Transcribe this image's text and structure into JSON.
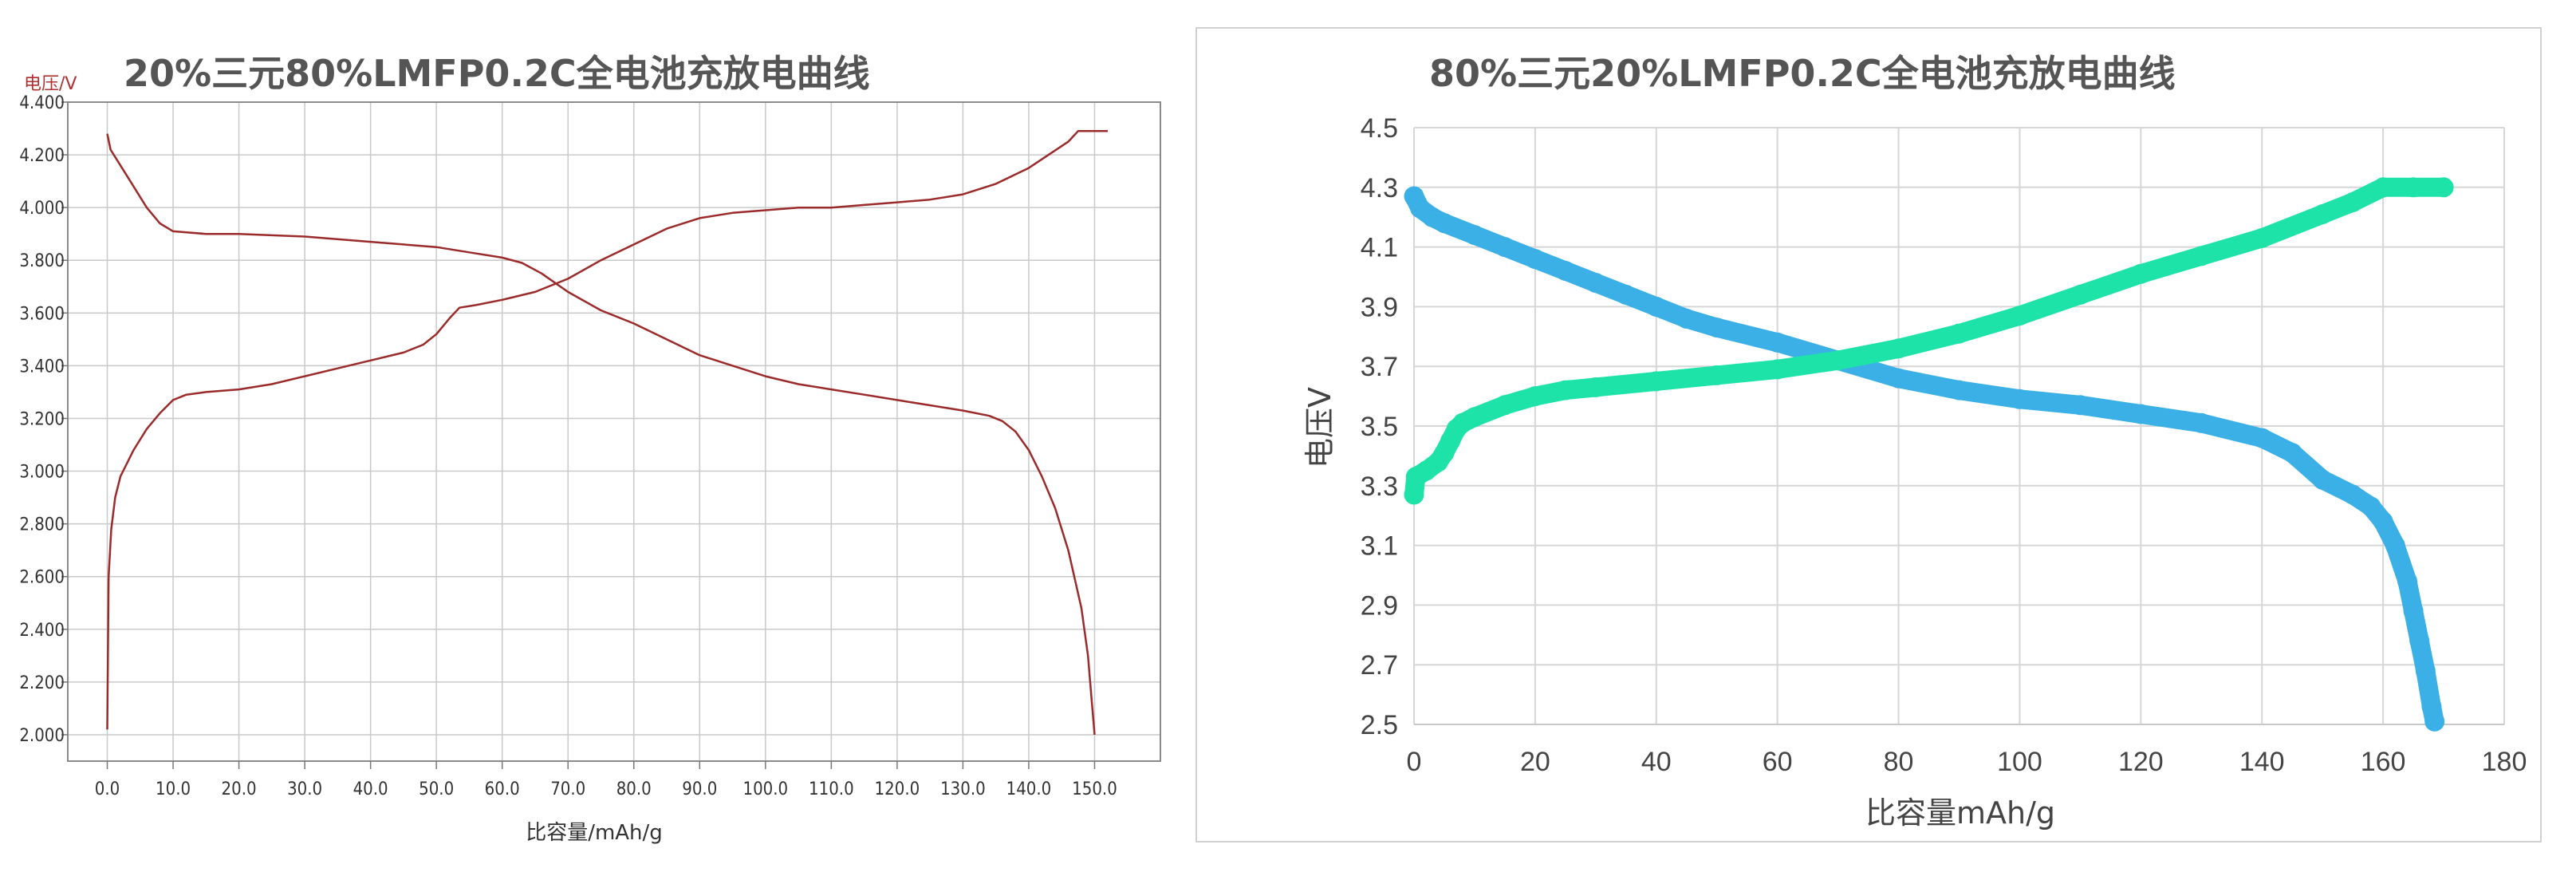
{
  "chart_data": [
    {
      "type": "line",
      "title": "20%三元80%LMFP0.2C全电池充放电曲线",
      "xlabel": "比容量/mAh/g",
      "ylabel": "电压/V",
      "xlim": [
        -6,
        160
      ],
      "ylim": [
        1.9,
        4.4
      ],
      "x_ticks": [
        "0.0",
        "10.0",
        "20.0",
        "30.0",
        "40.0",
        "50.0",
        "60.0",
        "70.0",
        "80.0",
        "90.0",
        "100.0",
        "110.0",
        "120.0",
        "130.0",
        "140.0",
        "150.0"
      ],
      "y_ticks": [
        "2.000",
        "2.200",
        "2.400",
        "2.600",
        "2.800",
        "3.000",
        "3.200",
        "3.400",
        "3.600",
        "3.800",
        "4.000",
        "4.200",
        "4.400"
      ],
      "grid": true,
      "color": "#9b2b2b",
      "series": [
        {
          "role": "charge",
          "points": [
            [
              0,
              2.02
            ],
            [
              0.2,
              2.6
            ],
            [
              0.6,
              2.78
            ],
            [
              1.2,
              2.9
            ],
            [
              2,
              2.98
            ],
            [
              4,
              3.08
            ],
            [
              6,
              3.16
            ],
            [
              8,
              3.22
            ],
            [
              10,
              3.27
            ],
            [
              12,
              3.29
            ],
            [
              15,
              3.3
            ],
            [
              20,
              3.31
            ],
            [
              25,
              3.33
            ],
            [
              30,
              3.36
            ],
            [
              35,
              3.39
            ],
            [
              40,
              3.42
            ],
            [
              45,
              3.45
            ],
            [
              48,
              3.48
            ],
            [
              50,
              3.52
            ],
            [
              52,
              3.58
            ],
            [
              53.5,
              3.62
            ],
            [
              56,
              3.63
            ],
            [
              60,
              3.65
            ],
            [
              65,
              3.68
            ],
            [
              70,
              3.73
            ],
            [
              75,
              3.8
            ],
            [
              80,
              3.86
            ],
            [
              85,
              3.92
            ],
            [
              90,
              3.96
            ],
            [
              95,
              3.98
            ],
            [
              100,
              3.99
            ],
            [
              105,
              4.0
            ],
            [
              110,
              4.0
            ],
            [
              115,
              4.01
            ],
            [
              120,
              4.02
            ],
            [
              125,
              4.03
            ],
            [
              130,
              4.05
            ],
            [
              135,
              4.09
            ],
            [
              140,
              4.15
            ],
            [
              143,
              4.2
            ],
            [
              146,
              4.25
            ],
            [
              147.5,
              4.29
            ],
            [
              150,
              4.29
            ],
            [
              152,
              4.29
            ]
          ]
        },
        {
          "role": "discharge",
          "points": [
            [
              0,
              4.28
            ],
            [
              0.5,
              4.22
            ],
            [
              2,
              4.16
            ],
            [
              4,
              4.08
            ],
            [
              6,
              4.0
            ],
            [
              8,
              3.94
            ],
            [
              10,
              3.91
            ],
            [
              15,
              3.9
            ],
            [
              20,
              3.9
            ],
            [
              30,
              3.89
            ],
            [
              40,
              3.87
            ],
            [
              50,
              3.85
            ],
            [
              55,
              3.83
            ],
            [
              60,
              3.81
            ],
            [
              63,
              3.79
            ],
            [
              66,
              3.75
            ],
            [
              70,
              3.68
            ],
            [
              75,
              3.61
            ],
            [
              80,
              3.56
            ],
            [
              85,
              3.5
            ],
            [
              90,
              3.44
            ],
            [
              95,
              3.4
            ],
            [
              100,
              3.36
            ],
            [
              105,
              3.33
            ],
            [
              110,
              3.31
            ],
            [
              115,
              3.29
            ],
            [
              120,
              3.27
            ],
            [
              125,
              3.25
            ],
            [
              130,
              3.23
            ],
            [
              134,
              3.21
            ],
            [
              136,
              3.19
            ],
            [
              138,
              3.15
            ],
            [
              140,
              3.08
            ],
            [
              142,
              2.98
            ],
            [
              144,
              2.86
            ],
            [
              146,
              2.7
            ],
            [
              148,
              2.48
            ],
            [
              149,
              2.3
            ],
            [
              149.5,
              2.15
            ],
            [
              150,
              2.0
            ]
          ]
        }
      ]
    },
    {
      "type": "scatter",
      "title": "80%三元20%LMFP0.2C全电池充放电曲线",
      "xlabel": "比容量mAh/g",
      "ylabel": "电压V",
      "xlim": [
        0,
        180
      ],
      "ylim": [
        2.5,
        4.5
      ],
      "x_ticks": [
        "0",
        "20",
        "40",
        "60",
        "80",
        "100",
        "120",
        "140",
        "160",
        "180"
      ],
      "y_ticks": [
        "2.5",
        "2.7",
        "2.9",
        "3.1",
        "3.3",
        "3.5",
        "3.7",
        "3.9",
        "4.1",
        "4.3",
        "4.5"
      ],
      "grid": true,
      "series": [
        {
          "role": "charge",
          "color": "#1de3a8",
          "points": [
            [
              0,
              3.27
            ],
            [
              0.3,
              3.33
            ],
            [
              2,
              3.35
            ],
            [
              4,
              3.38
            ],
            [
              5,
              3.41
            ],
            [
              6,
              3.45
            ],
            [
              7,
              3.49
            ],
            [
              8,
              3.51
            ],
            [
              10,
              3.53
            ],
            [
              15,
              3.57
            ],
            [
              20,
              3.6
            ],
            [
              25,
              3.62
            ],
            [
              30,
              3.63
            ],
            [
              40,
              3.65
            ],
            [
              50,
              3.67
            ],
            [
              60,
              3.69
            ],
            [
              70,
              3.72
            ],
            [
              80,
              3.76
            ],
            [
              90,
              3.81
            ],
            [
              100,
              3.87
            ],
            [
              110,
              3.94
            ],
            [
              120,
              4.01
            ],
            [
              130,
              4.07
            ],
            [
              140,
              4.13
            ],
            [
              150,
              4.21
            ],
            [
              155,
              4.25
            ],
            [
              160,
              4.3
            ],
            [
              165,
              4.3
            ],
            [
              170,
              4.3
            ]
          ]
        },
        {
          "role": "discharge",
          "color": "#3ab0e6",
          "points": [
            [
              0,
              4.27
            ],
            [
              1,
              4.23
            ],
            [
              3,
              4.2
            ],
            [
              5,
              4.18
            ],
            [
              10,
              4.14
            ],
            [
              15,
              4.1
            ],
            [
              20,
              4.06
            ],
            [
              25,
              4.02
            ],
            [
              30,
              3.98
            ],
            [
              35,
              3.94
            ],
            [
              40,
              3.9
            ],
            [
              45,
              3.86
            ],
            [
              50,
              3.83
            ],
            [
              60,
              3.78
            ],
            [
              70,
              3.72
            ],
            [
              80,
              3.66
            ],
            [
              90,
              3.62
            ],
            [
              100,
              3.59
            ],
            [
              110,
              3.57
            ],
            [
              120,
              3.54
            ],
            [
              130,
              3.51
            ],
            [
              140,
              3.46
            ],
            [
              145,
              3.41
            ],
            [
              150,
              3.32
            ],
            [
              155,
              3.27
            ],
            [
              158,
              3.23
            ],
            [
              160,
              3.18
            ],
            [
              162,
              3.1
            ],
            [
              164,
              2.98
            ],
            [
              165,
              2.88
            ],
            [
              166,
              2.78
            ],
            [
              167,
              2.68
            ],
            [
              168,
              2.56
            ],
            [
              168.5,
              2.51
            ]
          ]
        }
      ]
    }
  ]
}
